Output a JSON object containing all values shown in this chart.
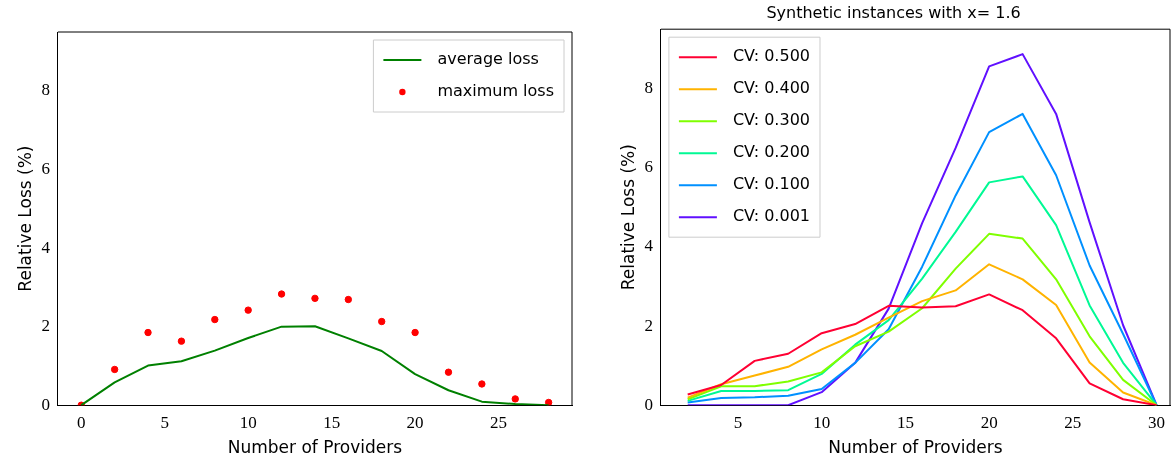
{
  "chart_data": [
    {
      "type": "line",
      "xlabel": "Number of Providers",
      "ylabel": "Relative Loss (%)",
      "xlim": [
        -1.4,
        29.4
      ],
      "xticks": [
        0,
        5,
        10,
        15,
        20,
        25
      ],
      "ylim": [
        0,
        9.5
      ],
      "yticks": [
        0,
        2,
        4,
        6,
        8
      ],
      "grid": false,
      "legend": "top right",
      "series": [
        {
          "name": "average loss",
          "type": "line",
          "color": "#008000",
          "marker": "none",
          "x": [
            0,
            2,
            4,
            6,
            8,
            10,
            12,
            14,
            16,
            18,
            20,
            22,
            24,
            26,
            28
          ],
          "values": [
            0,
            0.58,
            1.01,
            1.12,
            1.39,
            1.71,
            2.0,
            2.01,
            1.7,
            1.38,
            0.79,
            0.38,
            0.09,
            0.03,
            0
          ]
        },
        {
          "name": "maximum loss",
          "type": "scatter",
          "color": "#ff0000",
          "marker": "circle",
          "x": [
            0,
            2,
            4,
            6,
            8,
            10,
            12,
            14,
            16,
            18,
            20,
            22,
            24,
            26,
            28
          ],
          "values": [
            0,
            0.91,
            1.85,
            1.63,
            2.18,
            2.42,
            2.83,
            2.72,
            2.69,
            2.13,
            1.85,
            0.84,
            0.54,
            0.16,
            0.07
          ]
        }
      ]
    },
    {
      "type": "line",
      "title": "Synthetic instances with x= 1.6",
      "xlabel": "Number of Providers",
      "ylabel": "Relative Loss (%)",
      "xlim": [
        0.4,
        30.8
      ],
      "xticks": [
        5,
        10,
        15,
        20,
        25,
        30
      ],
      "ylim": [
        0,
        9.5
      ],
      "yticks": [
        0,
        2,
        4,
        6,
        8
      ],
      "grid": false,
      "legend": "top left",
      "x": [
        2,
        4,
        6,
        8,
        10,
        12,
        14,
        16,
        18,
        20,
        22,
        24,
        26,
        28,
        30
      ],
      "series": [
        {
          "name": "CV: 0.500",
          "color": "#ff0033",
          "values": [
            0.27,
            0.51,
            1.12,
            1.3,
            1.82,
            2.05,
            2.51,
            2.47,
            2.5,
            2.8,
            2.4,
            1.69,
            0.55,
            0.15,
            0
          ]
        },
        {
          "name": "CV: 0.400",
          "color": "#ffb300",
          "values": [
            0.19,
            0.53,
            0.75,
            0.97,
            1.41,
            1.78,
            2.21,
            2.63,
            2.9,
            3.56,
            3.18,
            2.53,
            1.08,
            0.32,
            0
          ]
        },
        {
          "name": "CV: 0.300",
          "color": "#7fff00",
          "values": [
            0.15,
            0.48,
            0.48,
            0.6,
            0.83,
            1.49,
            1.86,
            2.45,
            3.45,
            4.33,
            4.21,
            3.18,
            1.74,
            0.64,
            0
          ]
        },
        {
          "name": "CV: 0.200",
          "color": "#00f994",
          "values": [
            0.11,
            0.36,
            0.36,
            0.38,
            0.79,
            1.53,
            2.15,
            3.2,
            4.38,
            5.63,
            5.78,
            4.55,
            2.52,
            1.07,
            0
          ]
        },
        {
          "name": "CV: 0.100",
          "color": "#0090ff",
          "values": [
            0.07,
            0.18,
            0.2,
            0.24,
            0.41,
            1.07,
            1.92,
            3.5,
            5.3,
            6.9,
            7.36,
            5.81,
            3.53,
            1.8,
            0
          ]
        },
        {
          "name": "CV: 0.001",
          "color": "#6010ff",
          "values": [
            0,
            0,
            0,
            0,
            0.33,
            1.07,
            2.44,
            4.6,
            6.5,
            8.56,
            8.87,
            7.36,
            4.62,
            2.02,
            0
          ]
        }
      ]
    }
  ]
}
